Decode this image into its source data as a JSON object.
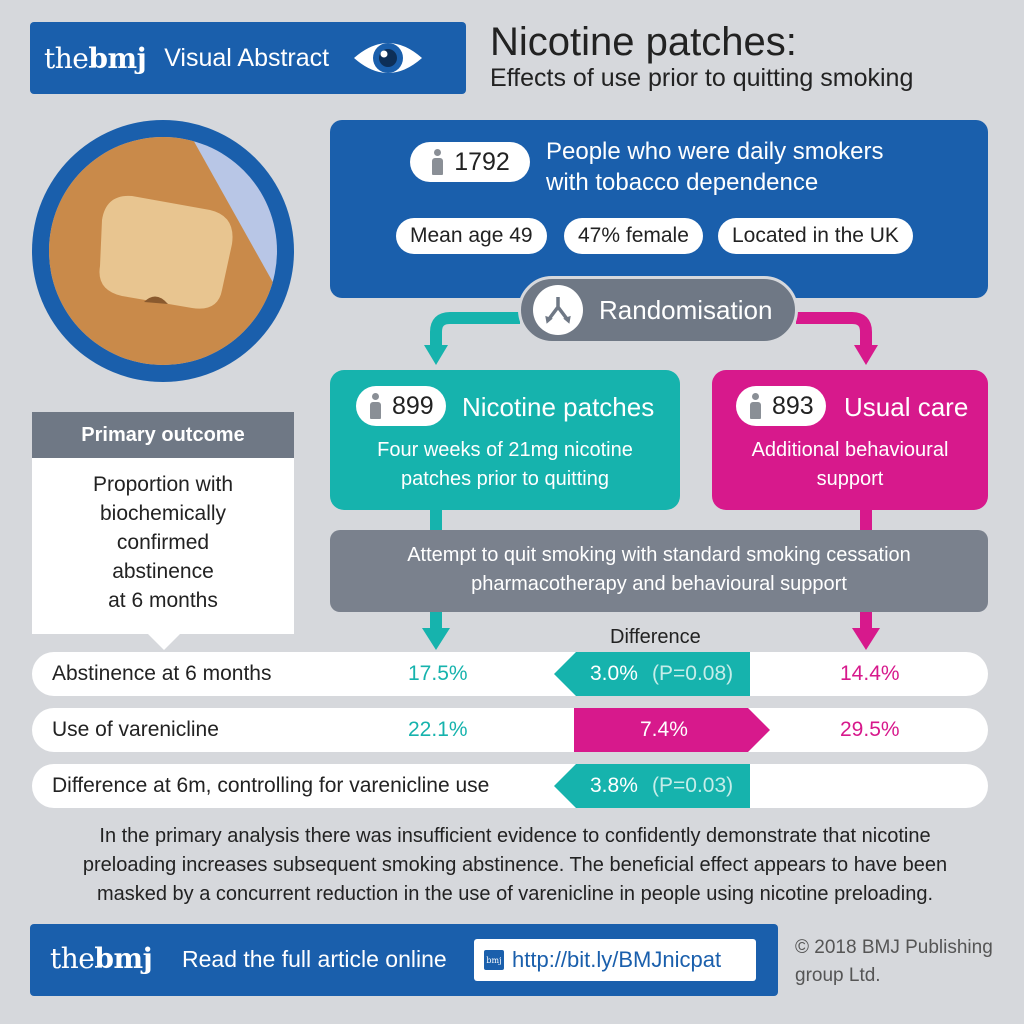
{
  "header": {
    "logo_the": "the",
    "logo_bmj": "bmj",
    "badge_label": "Visual Abstract",
    "title": "Nicotine patches:",
    "subtitle": "Effects of use prior to quitting smoking"
  },
  "population": {
    "count": "1792",
    "description_line1": "People who were daily smokers",
    "description_line2": "with tobacco dependence",
    "chips": [
      "Mean age 49",
      "47% female",
      "Located in the UK"
    ]
  },
  "randomisation": {
    "label": "Randomisation"
  },
  "arms": {
    "nicotine": {
      "count": "899",
      "label": "Nicotine patches",
      "desc_line1": "Four weeks of 21mg nicotine",
      "desc_line2": "patches prior to quitting"
    },
    "usual": {
      "count": "893",
      "label": "Usual care",
      "desc_line1": "Additional behavioural",
      "desc_line2": "support"
    }
  },
  "attempt": {
    "line1": "Attempt to quit smoking with standard smoking cessation",
    "line2": "pharmacotherapy and behavioural support"
  },
  "primary_outcome": {
    "heading": "Primary outcome",
    "lines": [
      "Proportion with",
      "biochemically",
      "confirmed",
      "abstinence",
      "at 6 months"
    ]
  },
  "difference_label": "Difference",
  "results": [
    {
      "label": "Abstinence at 6 months",
      "np": "17.5%",
      "diff": "3.0%",
      "p": "(P=0.08)",
      "uc": "14.4%"
    },
    {
      "label": "Use of varenicline",
      "np": "22.1%",
      "diff": "7.4%",
      "p": "",
      "uc": "29.5%"
    },
    {
      "label": "Difference at 6m, controlling for varenicline use",
      "np": "",
      "diff": "3.8%",
      "p": "(P=0.03)",
      "uc": ""
    }
  ],
  "summary": {
    "line1": "In the primary analysis there was insufficient evidence to confidently demonstrate that nicotine",
    "line2": "preloading increases subsequent smoking abstinence. The beneficial effect appears to have been",
    "line3": "masked by a concurrent reduction in the use of varenicline in people using nicotine preloading."
  },
  "footer": {
    "logo_the": "the",
    "logo_bmj": "bmj",
    "read_text": "Read the full article online",
    "mini_logo": "bmj",
    "link": "http://bit.ly/BMJnicpat",
    "copyright_line1": "© 2018 BMJ Publishing",
    "copyright_line2": "group Ltd."
  },
  "colors": {
    "blue": "#1a5fac",
    "teal": "#16b3ad",
    "magenta": "#d7198c",
    "grey": "#6f7885",
    "background": "#d6d8dc"
  },
  "icons": [
    "eye-icon",
    "person-icon",
    "split-arrows-icon",
    "arrow-down-icon"
  ]
}
